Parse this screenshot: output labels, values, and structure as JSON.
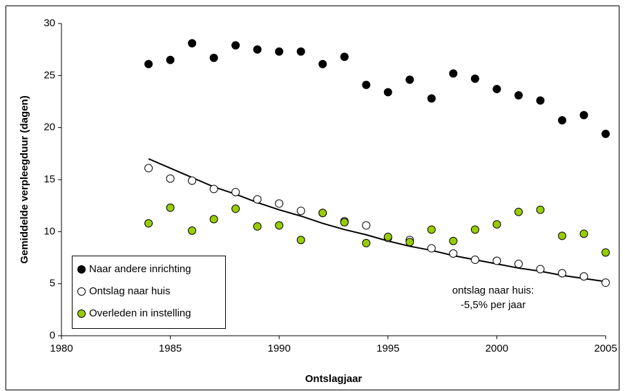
{
  "chart_data": {
    "type": "scatter",
    "x": [
      1984,
      1985,
      1986,
      1987,
      1988,
      1989,
      1990,
      1991,
      1992,
      1993,
      1994,
      1995,
      1996,
      1997,
      1998,
      1999,
      2000,
      2001,
      2002,
      2003,
      2004,
      2005
    ],
    "series": [
      {
        "name": "Naar andere inrichting",
        "color": "#000000",
        "values": [
          26.1,
          26.5,
          28.1,
          26.7,
          27.9,
          27.5,
          27.3,
          27.3,
          26.1,
          26.8,
          24.1,
          23.4,
          24.6,
          22.8,
          25.2,
          24.7,
          23.7,
          23.1,
          22.6,
          20.7,
          21.2,
          19.4
        ]
      },
      {
        "name": "Ontslag naar huis",
        "color": "#ffffff",
        "values": [
          16.1,
          15.1,
          14.9,
          14.1,
          13.8,
          13.1,
          12.7,
          12.0,
          11.8,
          11.0,
          10.6,
          9.4,
          9.2,
          8.4,
          7.9,
          7.3,
          7.2,
          6.9,
          6.4,
          6.0,
          5.7,
          5.1
        ]
      },
      {
        "name": "Overleden in instelling",
        "color": "#99cc00",
        "values": [
          10.8,
          12.3,
          10.1,
          11.2,
          12.2,
          10.5,
          10.6,
          9.2,
          11.8,
          10.9,
          8.9,
          9.5,
          9.0,
          10.2,
          9.1,
          10.2,
          10.7,
          11.9,
          12.1,
          9.6,
          9.8,
          8.0
        ]
      }
    ],
    "trendline": {
      "color": "#000000",
      "values": [
        17.0,
        16.1,
        15.2,
        14.3,
        13.6,
        12.8,
        12.1,
        11.5,
        10.8,
        10.2,
        9.7,
        9.1,
        8.6,
        8.2,
        7.7,
        7.3,
        6.9,
        6.5,
        6.2,
        5.8,
        5.5,
        5.2
      ]
    },
    "annotation": [
      "ontslag naar huis:",
      "-5,5% per jaar"
    ],
    "xlabel": "Ontslagjaar",
    "ylabel": "Gemiddelde verpleegduur (dagen)",
    "xlim": [
      1980,
      2005
    ],
    "xticks": [
      1980,
      1985,
      1990,
      1995,
      2000,
      2005
    ],
    "ylim": [
      0,
      30
    ],
    "yticks": [
      0,
      5,
      10,
      15,
      20,
      25,
      30
    ],
    "legend": "lower-left"
  }
}
